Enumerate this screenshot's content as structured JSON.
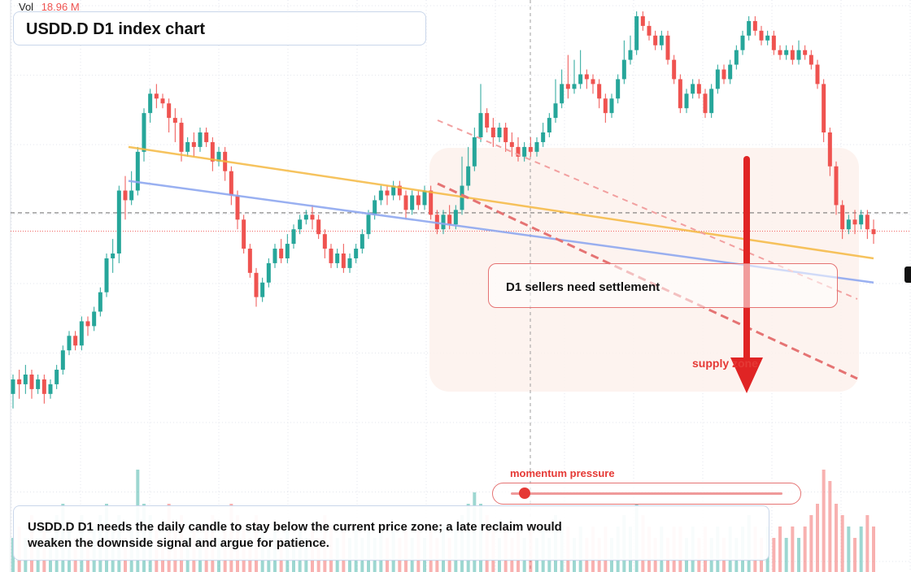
{
  "volume": {
    "label": "Vol",
    "value": "18.96 M"
  },
  "title": "USDD.D D1 index chart",
  "annotations": {
    "sellers_note": "D1 sellers need settlement",
    "supply_zone": "supply zone",
    "momentum_label": "momentum pressure",
    "momentum_level": 0.05,
    "bottom_note": "USDD.D D1 needs the daily candle to stay below the current price zone; a late reclaim would weaken the downside signal and argue for patience."
  },
  "colors": {
    "up": "#26a69a",
    "down": "#ef5350",
    "resistance_line": "#f5b942",
    "support_line": "#8fa8f0",
    "arrow": "#e02424",
    "zone_fill": "#fdf1ec"
  },
  "chart_data": {
    "type": "candlestick",
    "title": "USDD.D D1 index chart",
    "y_range": [
      0,
      100
    ],
    "current_price_level": 58.4,
    "last_close_level": 54.6,
    "volume_label": "Vol",
    "volume_last": "18.96 M",
    "candles": [
      [
        21,
        24,
        18,
        25,
        3
      ],
      [
        24,
        23,
        20,
        26,
        4
      ],
      [
        23,
        25,
        21,
        27,
        3
      ],
      [
        25,
        22,
        20,
        26,
        5
      ],
      [
        22,
        24,
        21,
        25,
        3
      ],
      [
        24,
        21,
        19,
        25,
        4
      ],
      [
        21,
        23,
        20,
        24,
        3
      ],
      [
        23,
        26,
        22,
        27,
        5
      ],
      [
        26,
        30,
        25,
        31,
        6
      ],
      [
        30,
        33,
        29,
        34,
        4
      ],
      [
        33,
        31,
        30,
        34,
        3
      ],
      [
        31,
        36,
        30,
        37,
        5
      ],
      [
        36,
        35,
        33,
        37,
        3
      ],
      [
        35,
        38,
        34,
        39,
        4
      ],
      [
        38,
        42,
        37,
        43,
        5
      ],
      [
        42,
        49,
        41,
        50,
        6
      ],
      [
        49,
        50,
        46,
        53,
        4
      ],
      [
        50,
        63,
        48,
        64,
        5
      ],
      [
        63,
        61,
        57,
        66,
        3
      ],
      [
        61,
        63,
        60,
        67,
        4
      ],
      [
        63,
        71,
        62,
        72,
        9
      ],
      [
        71,
        79,
        69,
        80,
        6
      ],
      [
        79,
        83,
        77,
        84,
        5
      ],
      [
        83,
        82,
        80,
        85,
        4
      ],
      [
        82,
        81,
        80,
        83,
        3
      ],
      [
        81,
        78,
        75,
        82,
        6
      ],
      [
        78,
        77,
        73,
        80,
        4
      ],
      [
        77,
        71,
        69,
        78,
        5
      ],
      [
        71,
        73,
        70,
        74,
        3
      ],
      [
        73,
        72,
        70,
        75,
        4
      ],
      [
        72,
        75,
        71,
        76,
        3
      ],
      [
        75,
        73,
        72,
        76,
        4
      ],
      [
        73,
        69,
        67,
        74,
        5
      ],
      [
        69,
        71,
        68,
        72,
        3
      ],
      [
        71,
        67,
        65,
        72,
        4
      ],
      [
        67,
        62,
        60,
        68,
        6
      ],
      [
        62,
        57,
        55,
        63,
        5
      ],
      [
        57,
        51,
        50,
        58,
        4
      ],
      [
        51,
        46,
        45,
        52,
        3
      ],
      [
        46,
        41,
        39,
        47,
        5
      ],
      [
        41,
        44,
        40,
        45,
        4
      ],
      [
        44,
        48,
        43,
        49,
        3
      ],
      [
        48,
        51,
        47,
        52,
        4
      ],
      [
        51,
        49,
        48,
        53,
        3
      ],
      [
        49,
        52,
        48,
        54,
        4
      ],
      [
        52,
        55,
        51,
        56,
        3
      ],
      [
        55,
        57,
        54,
        58,
        4
      ],
      [
        57,
        58,
        56,
        59,
        3
      ],
      [
        58,
        57,
        55,
        60,
        4
      ],
      [
        57,
        54,
        53,
        58,
        3
      ],
      [
        54,
        51,
        49,
        55,
        5
      ],
      [
        51,
        48,
        47,
        52,
        4
      ],
      [
        48,
        50,
        47,
        51,
        3
      ],
      [
        50,
        47,
        46,
        52,
        4
      ],
      [
        47,
        49,
        46,
        50,
        3
      ],
      [
        49,
        51,
        48,
        52,
        4
      ],
      [
        51,
        54,
        50,
        55,
        3
      ],
      [
        54,
        58,
        53,
        59,
        4
      ],
      [
        58,
        61,
        57,
        62,
        3
      ],
      [
        61,
        63,
        60,
        64,
        4
      ],
      [
        63,
        62,
        60,
        64,
        3
      ],
      [
        62,
        64,
        61,
        65,
        4
      ],
      [
        64,
        62,
        61,
        65,
        3
      ],
      [
        62,
        59,
        57,
        63,
        4
      ],
      [
        59,
        62,
        58,
        63,
        3
      ],
      [
        62,
        60,
        59,
        63,
        4
      ],
      [
        60,
        63,
        59,
        64,
        3
      ],
      [
        63,
        58,
        57,
        64,
        4
      ],
      [
        58,
        55,
        54,
        59,
        3
      ],
      [
        55,
        58,
        54,
        59,
        4
      ],
      [
        58,
        56,
        55,
        60,
        3
      ],
      [
        56,
        59,
        55,
        60,
        4
      ],
      [
        59,
        64,
        58,
        70,
        5
      ],
      [
        64,
        68,
        63,
        72,
        6
      ],
      [
        68,
        74,
        67,
        76,
        7
      ],
      [
        74,
        79,
        73,
        85,
        6
      ],
      [
        79,
        76,
        75,
        80,
        5
      ],
      [
        76,
        74,
        72,
        78,
        4
      ],
      [
        74,
        76,
        73,
        77,
        3
      ],
      [
        76,
        73,
        71,
        77,
        4
      ],
      [
        73,
        72,
        70,
        75,
        3
      ],
      [
        72,
        70,
        69,
        74,
        4
      ],
      [
        70,
        72,
        69,
        73,
        3
      ],
      [
        72,
        71,
        70,
        74,
        4
      ],
      [
        71,
        73,
        70,
        74,
        3
      ],
      [
        73,
        75,
        72,
        77,
        4
      ],
      [
        75,
        78,
        74,
        79,
        3
      ],
      [
        78,
        81,
        77,
        86,
        5
      ],
      [
        81,
        85,
        80,
        88,
        4
      ],
      [
        85,
        84,
        82,
        91,
        4
      ],
      [
        84,
        85,
        83,
        90,
        3
      ],
      [
        85,
        87,
        84,
        92,
        4
      ],
      [
        87,
        86,
        84,
        88,
        3
      ],
      [
        86,
        85,
        83,
        87,
        4
      ],
      [
        85,
        82,
        80,
        86,
        3
      ],
      [
        82,
        79,
        77,
        83,
        4
      ],
      [
        79,
        82,
        78,
        83,
        3
      ],
      [
        82,
        86,
        81,
        87,
        4
      ],
      [
        86,
        90,
        85,
        94,
        5
      ],
      [
        90,
        92,
        89,
        95,
        4
      ],
      [
        92,
        99,
        91,
        100,
        6
      ],
      [
        99,
        97,
        96,
        100,
        5
      ],
      [
        97,
        95,
        94,
        98,
        4
      ],
      [
        95,
        93,
        92,
        96,
        3
      ],
      [
        93,
        95,
        92,
        96,
        4
      ],
      [
        95,
        90,
        89,
        96,
        3
      ],
      [
        90,
        86,
        85,
        91,
        4
      ],
      [
        86,
        80,
        79,
        87,
        4
      ],
      [
        80,
        83,
        79,
        84,
        3
      ],
      [
        83,
        85,
        82,
        86,
        4
      ],
      [
        85,
        83,
        82,
        86,
        3
      ],
      [
        83,
        79,
        78,
        84,
        4
      ],
      [
        79,
        84,
        78,
        85,
        3
      ],
      [
        84,
        88,
        83,
        89,
        4
      ],
      [
        88,
        86,
        85,
        89,
        3
      ],
      [
        86,
        89,
        85,
        90,
        4
      ],
      [
        89,
        92,
        88,
        93,
        3
      ],
      [
        92,
        95,
        91,
        96,
        4
      ],
      [
        95,
        98,
        94,
        99,
        5
      ],
      [
        98,
        96,
        95,
        99,
        4
      ],
      [
        96,
        94,
        93,
        97,
        3
      ],
      [
        94,
        95,
        93,
        96,
        4
      ],
      [
        95,
        92,
        91,
        96,
        3
      ],
      [
        92,
        91,
        90,
        93,
        4
      ],
      [
        91,
        92,
        90,
        93,
        3
      ],
      [
        92,
        90,
        89,
        93,
        4
      ],
      [
        90,
        92,
        89,
        94,
        3
      ],
      [
        92,
        91,
        90,
        93,
        4
      ],
      [
        91,
        89,
        88,
        92,
        5
      ],
      [
        89,
        85,
        84,
        90,
        6
      ],
      [
        85,
        75,
        73,
        86,
        9
      ],
      [
        75,
        68,
        66,
        76,
        8
      ],
      [
        68,
        60,
        58,
        69,
        6
      ],
      [
        60,
        55,
        53,
        61,
        5
      ],
      [
        55,
        57,
        54,
        58,
        4
      ],
      [
        57,
        56,
        54,
        59,
        3
      ],
      [
        56,
        58,
        55,
        59,
        4
      ],
      [
        58,
        55,
        53,
        59,
        5
      ],
      [
        55,
        54,
        52,
        57,
        4
      ]
    ],
    "trendlines": [
      {
        "from": [
          0,
          72
        ],
        "to": [
          140,
          49
        ]
      },
      {
        "from": [
          0,
          65
        ],
        "to": [
          140,
          44
        ]
      }
    ],
    "supply_zone": [
      36,
      78
    ],
    "arrow": {
      "from_level": 82,
      "to_level": 47
    }
  }
}
